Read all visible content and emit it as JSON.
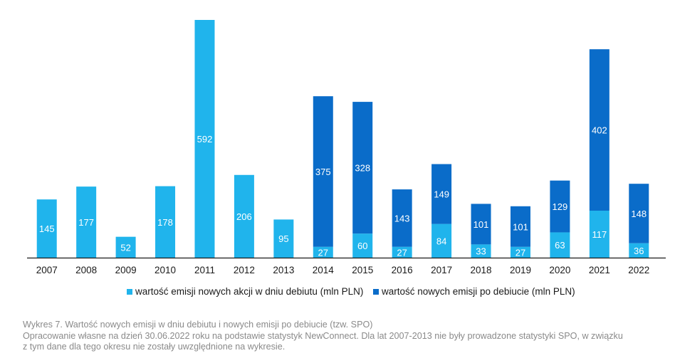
{
  "chart_data": {
    "type": "bar",
    "stacked": true,
    "categories": [
      "2007",
      "2008",
      "2009",
      "2010",
      "2011",
      "2012",
      "2013",
      "2014",
      "2015",
      "2016",
      "2017",
      "2018",
      "2019",
      "2020",
      "2021",
      "2022"
    ],
    "series": [
      {
        "name": "wartość emisji nowych akcji w dniu debiutu (mln PLN)",
        "color": "#20B4EC",
        "values": [
          145,
          177,
          52,
          178,
          592,
          206,
          95,
          27,
          60,
          27,
          84,
          33,
          27,
          63,
          117,
          36
        ]
      },
      {
        "name": "wartość nowych emisji po debiucie (mln PLN)",
        "color": "#0A6CC9",
        "values": [
          0,
          0,
          0,
          0,
          0,
          0,
          0,
          375,
          328,
          143,
          149,
          101,
          101,
          129,
          402,
          148
        ]
      }
    ],
    "ylim": [
      0,
      600
    ],
    "grid": false,
    "legend_position": "bottom"
  },
  "caption": {
    "title": "Wykres 7. Wartość nowych emisji w dniu debiutu i nowych emisji po debiucie (tzw. SPO)",
    "note_line1": "Opracowanie własne na dzień 30.06.2022 roku na podstawie statystyk NewConnect. Dla lat 2007-2013 nie były prowadzone statystyki SPO, w związku",
    "note_line2": "z tym dane dla tego okresu nie zostały uwzględnione na wykresie."
  }
}
